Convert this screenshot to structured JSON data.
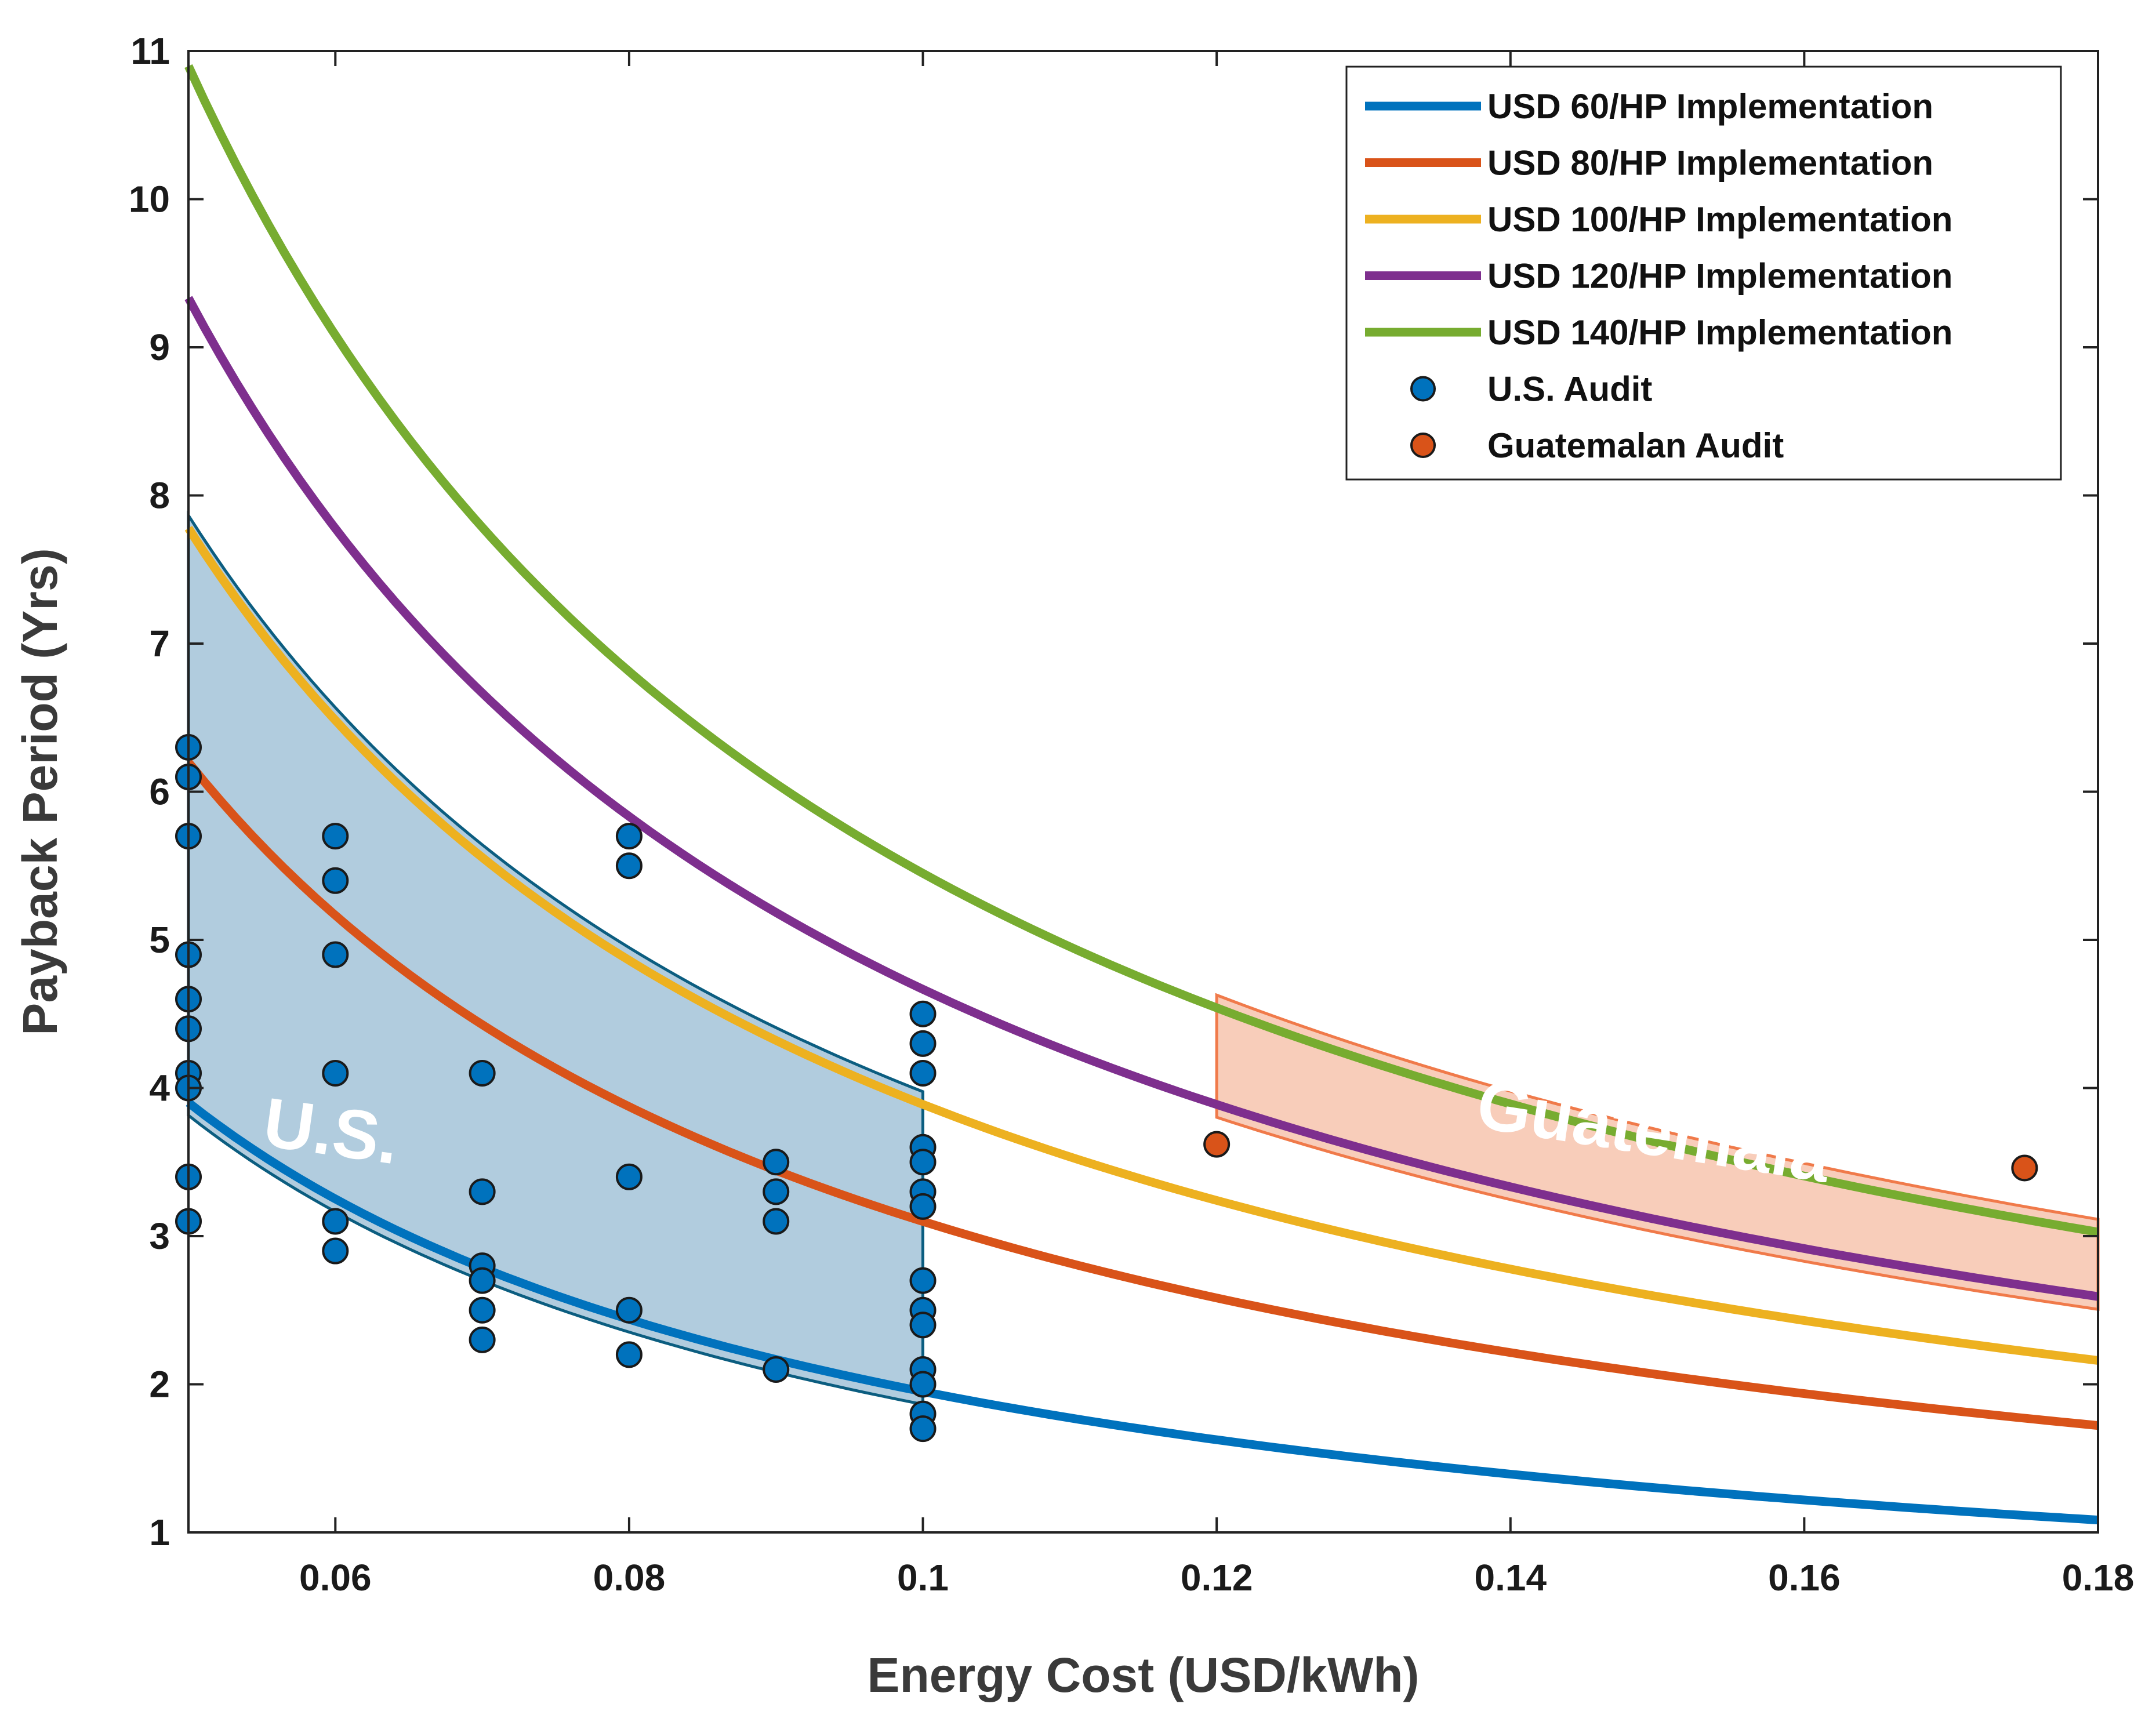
{
  "chart_data": {
    "type": "line",
    "xlabel": "Energy Cost (USD/kWh)",
    "ylabel": "Payback Period (Yrs)",
    "xlim": [
      0.05,
      0.18
    ],
    "ylim": [
      1,
      11
    ],
    "x_ticks": [
      0.06,
      0.08,
      0.1,
      0.12,
      0.14,
      0.16,
      0.18
    ],
    "x_tick_labels": [
      "0.06",
      "0.08",
      "0.1",
      "0.12",
      "0.14",
      "0.16",
      "0.18"
    ],
    "y_ticks": [
      1,
      2,
      3,
      4,
      5,
      6,
      7,
      8,
      9,
      10,
      11
    ],
    "y_tick_labels": [
      "1",
      "2",
      "3",
      "4",
      "5",
      "6",
      "7",
      "8",
      "9",
      "10",
      "11"
    ],
    "grid": false,
    "legend_position": "top-right",
    "series": [
      {
        "name": "USD 60/HP Implementation",
        "color": "#0072BD",
        "x": [
          0.05,
          0.06,
          0.07,
          0.08,
          0.09,
          0.1,
          0.12,
          0.14,
          0.16,
          0.18
        ],
        "y": [
          3.9,
          3.25,
          2.79,
          2.44,
          2.17,
          1.95,
          1.63,
          1.39,
          1.22,
          1.08
        ]
      },
      {
        "name": "USD 80/HP Implementation",
        "color": "#D95319",
        "x": [
          0.05,
          0.06,
          0.07,
          0.08,
          0.09,
          0.1,
          0.12,
          0.14,
          0.16,
          0.18
        ],
        "y": [
          6.2,
          5.17,
          4.43,
          3.88,
          3.44,
          3.1,
          2.58,
          2.21,
          1.94,
          1.72
        ]
      },
      {
        "name": "USD 100/HP Implementation",
        "color": "#EDB120",
        "x": [
          0.05,
          0.06,
          0.07,
          0.08,
          0.09,
          0.1,
          0.12,
          0.14,
          0.16,
          0.18
        ],
        "y": [
          7.78,
          6.48,
          5.56,
          4.86,
          4.32,
          3.89,
          3.24,
          2.78,
          2.43,
          2.16
        ]
      },
      {
        "name": "USD 120/HP Implementation",
        "color": "#7E2F8E",
        "x": [
          0.05,
          0.06,
          0.07,
          0.08,
          0.09,
          0.1,
          0.12,
          0.14,
          0.16,
          0.18
        ],
        "y": [
          9.33,
          7.78,
          6.67,
          5.83,
          5.18,
          4.67,
          3.89,
          3.33,
          2.92,
          2.59
        ]
      },
      {
        "name": "USD 140/HP Implementation",
        "color": "#77AC30",
        "x": [
          0.05,
          0.06,
          0.07,
          0.08,
          0.09,
          0.1,
          0.12,
          0.14,
          0.16,
          0.18
        ],
        "y": [
          10.9,
          9.08,
          7.78,
          6.81,
          6.05,
          5.45,
          4.54,
          3.89,
          3.41,
          3.03
        ]
      }
    ],
    "scatter": [
      {
        "name": "U.S. Audit",
        "color": "#0072BD",
        "points": [
          [
            0.05,
            6.3
          ],
          [
            0.05,
            6.1
          ],
          [
            0.05,
            5.7
          ],
          [
            0.05,
            4.9
          ],
          [
            0.05,
            4.6
          ],
          [
            0.05,
            4.4
          ],
          [
            0.05,
            4.1
          ],
          [
            0.05,
            4.0
          ],
          [
            0.05,
            3.4
          ],
          [
            0.05,
            3.1
          ],
          [
            0.06,
            5.7
          ],
          [
            0.06,
            5.4
          ],
          [
            0.06,
            4.9
          ],
          [
            0.06,
            4.1
          ],
          [
            0.06,
            3.1
          ],
          [
            0.06,
            2.9
          ],
          [
            0.07,
            4.1
          ],
          [
            0.07,
            3.3
          ],
          [
            0.07,
            2.8
          ],
          [
            0.07,
            2.7
          ],
          [
            0.07,
            2.5
          ],
          [
            0.07,
            2.3
          ],
          [
            0.08,
            5.7
          ],
          [
            0.08,
            5.5
          ],
          [
            0.08,
            3.4
          ],
          [
            0.08,
            2.5
          ],
          [
            0.08,
            2.2
          ],
          [
            0.09,
            3.5
          ],
          [
            0.09,
            3.3
          ],
          [
            0.09,
            3.1
          ],
          [
            0.09,
            2.1
          ],
          [
            0.1,
            4.5
          ],
          [
            0.1,
            4.3
          ],
          [
            0.1,
            4.1
          ],
          [
            0.1,
            3.6
          ],
          [
            0.1,
            3.5
          ],
          [
            0.1,
            3.3
          ],
          [
            0.1,
            3.2
          ],
          [
            0.1,
            2.7
          ],
          [
            0.1,
            2.5
          ],
          [
            0.1,
            2.4
          ],
          [
            0.1,
            2.1
          ],
          [
            0.1,
            2.0
          ],
          [
            0.1,
            1.8
          ],
          [
            0.1,
            1.7
          ]
        ]
      },
      {
        "name": "Guatemalan Audit",
        "color": "#D95319",
        "points": [
          [
            0.12,
            3.62
          ],
          [
            0.175,
            3.46
          ]
        ]
      }
    ],
    "regions": [
      {
        "label": "U.S.",
        "fill": "#A9C7DA",
        "stroke": "#0B5D80",
        "x_range": [
          0.05,
          0.1
        ],
        "lower": "USD 60/HP Implementation",
        "upper": "USD 100/HP Implementation"
      },
      {
        "label": "Guatemala",
        "fill": "#F7C4AE",
        "stroke": "#F07A4A",
        "x_range": [
          0.12,
          0.18
        ],
        "lower": "USD 120/HP Implementation",
        "upper": "USD 140/HP Implementation"
      }
    ]
  }
}
